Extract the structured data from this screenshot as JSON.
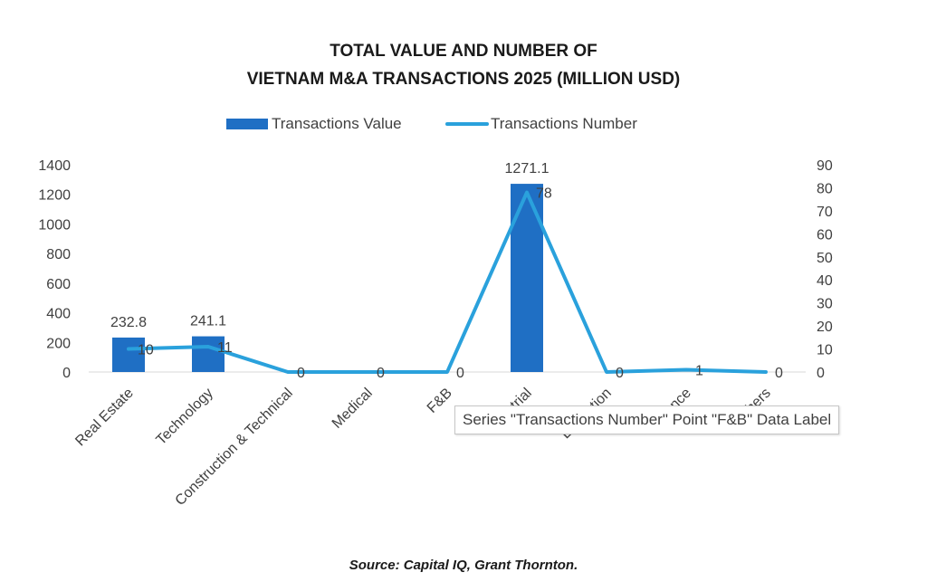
{
  "colors": {
    "bar": "#1f6fc4",
    "line": "#2aa1dc",
    "axis": "#d9d9d9"
  },
  "chart_data": {
    "type": "bar",
    "title": "TOTAL VALUE AND NUMBER OF",
    "title_line2": "VIETNAM M&A TRANSACTIONS 2025 (MILLION USD)",
    "categories": [
      "Real Estate",
      "Technology",
      "Construction & Technical",
      "Medical",
      "F&B",
      "Industrial",
      "Education",
      "Finance",
      "Others"
    ],
    "series": [
      {
        "name": "Transactions Value",
        "type": "bar",
        "axis": "left",
        "values": [
          232.8,
          241.1,
          0,
          0,
          0,
          1271.1,
          0,
          0,
          0
        ],
        "labels": [
          "232.8",
          "241.1",
          "",
          "",
          "",
          "1271.1",
          "",
          "",
          ""
        ]
      },
      {
        "name": "Transactions Number",
        "type": "line",
        "axis": "right",
        "values": [
          10,
          11,
          0,
          0,
          0,
          78,
          0,
          1,
          0
        ],
        "labels": [
          "10",
          "11",
          "0",
          "0",
          "0",
          "78",
          "0",
          "1",
          "0"
        ]
      }
    ],
    "ylim": [
      0,
      1400
    ],
    "yticks": [
      "0",
      "200",
      "400",
      "600",
      "800",
      "1000",
      "1200",
      "1400"
    ],
    "y2lim": [
      0,
      90
    ],
    "y2ticks": [
      "0",
      "10",
      "20",
      "30",
      "40",
      "50",
      "60",
      "70",
      "80",
      "90"
    ],
    "legend": "top",
    "grid": false
  },
  "tooltip": "Series \"Transactions Number\" Point \"F&B\" Data Label",
  "source": "Source: Capital IQ, Grant Thornton."
}
